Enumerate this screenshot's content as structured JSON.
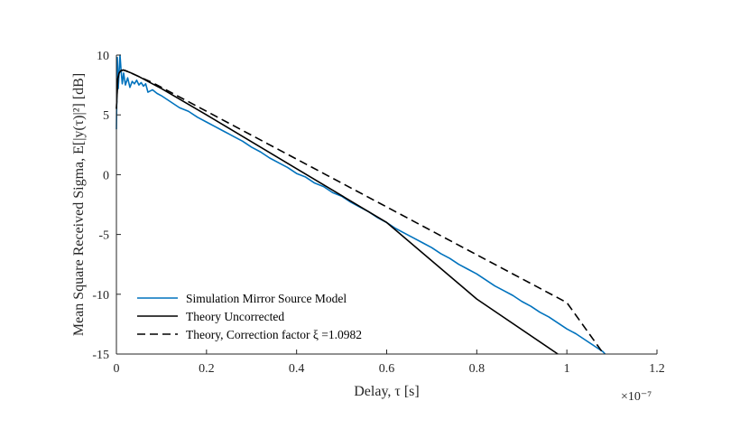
{
  "chart_data": {
    "type": "line",
    "title": "",
    "xlabel": "Delay, τ [s]",
    "ylabel": "Mean Square Received Sigma, E[|y(τ)|²] [dB]",
    "x_exponent_label": "×10⁻⁷",
    "x_scale_note": "x values are in units of 1e-7 s",
    "xlim": [
      0,
      1.2
    ],
    "ylim": [
      -15,
      10
    ],
    "x_ticks": [
      0,
      0.2,
      0.4,
      0.6,
      0.8,
      1,
      1.2
    ],
    "x_tick_labels": [
      "0",
      "0.2",
      "0.4",
      "0.6",
      "0.8",
      "1",
      "1.2"
    ],
    "y_ticks": [
      10,
      5,
      0,
      -5,
      -10,
      -15
    ],
    "y_tick_labels": [
      "10",
      "5",
      "0",
      "-5",
      "-10",
      "-15"
    ],
    "grid": false,
    "legend_position": "bottom-left",
    "series": [
      {
        "name": "Simulation Mirror Source Model",
        "color": "#0072BD",
        "style": "solid",
        "x": [
          0.0,
          0.002,
          0.004,
          0.006,
          0.008,
          0.01,
          0.013,
          0.016,
          0.02,
          0.025,
          0.03,
          0.035,
          0.04,
          0.045,
          0.05,
          0.055,
          0.06,
          0.065,
          0.07,
          0.08,
          0.09,
          0.1,
          0.12,
          0.14,
          0.16,
          0.18,
          0.2,
          0.22,
          0.24,
          0.26,
          0.28,
          0.3,
          0.32,
          0.34,
          0.36,
          0.38,
          0.4,
          0.42,
          0.44,
          0.46,
          0.48,
          0.5,
          0.52,
          0.54,
          0.56,
          0.58,
          0.6,
          0.62,
          0.64,
          0.66,
          0.68,
          0.7,
          0.72,
          0.74,
          0.76,
          0.78,
          0.8,
          0.82,
          0.84,
          0.86,
          0.88,
          0.9,
          0.92,
          0.94,
          0.96,
          0.98,
          1.0,
          1.02,
          1.04,
          1.06,
          1.08,
          1.085
        ],
        "y": [
          3.8,
          9.8,
          7.2,
          8.6,
          10.0,
          8.9,
          7.6,
          8.5,
          7.5,
          8.1,
          7.3,
          7.8,
          7.6,
          7.9,
          7.5,
          7.7,
          7.4,
          7.6,
          6.9,
          7.1,
          6.8,
          6.6,
          6.1,
          5.6,
          5.3,
          4.8,
          4.4,
          4.0,
          3.6,
          3.2,
          2.8,
          2.3,
          1.9,
          1.4,
          1.0,
          0.6,
          0.1,
          -0.2,
          -0.7,
          -1.0,
          -1.5,
          -1.8,
          -2.3,
          -2.7,
          -3.1,
          -3.6,
          -4.0,
          -4.5,
          -4.9,
          -5.3,
          -5.7,
          -6.1,
          -6.6,
          -7.0,
          -7.5,
          -7.9,
          -8.3,
          -8.8,
          -9.3,
          -9.7,
          -10.1,
          -10.6,
          -11.0,
          -11.5,
          -11.9,
          -12.4,
          -12.9,
          -13.3,
          -13.8,
          -14.3,
          -14.8,
          -15.0
        ]
      },
      {
        "name": "Theory Uncorrected",
        "color": "#000000",
        "style": "solid",
        "x": [
          0.0,
          0.003,
          0.006,
          0.01,
          0.015,
          0.02,
          0.03,
          0.05,
          0.08,
          0.1,
          0.2,
          0.4,
          0.6,
          0.8,
          0.98
        ],
        "y": [
          5.5,
          8.0,
          8.5,
          8.7,
          8.75,
          8.7,
          8.55,
          8.2,
          7.6,
          7.2,
          5.0,
          0.5,
          -4.0,
          -10.4,
          -15.0
        ]
      },
      {
        "name": "Theory, Correction factor ξ =1.0982",
        "color": "#000000",
        "style": "dashed",
        "x": [
          0.0,
          0.003,
          0.006,
          0.01,
          0.015,
          0.02,
          0.03,
          0.05,
          0.08,
          0.1,
          0.2,
          0.4,
          0.6,
          0.8,
          1.0,
          1.08
        ],
        "y": [
          5.5,
          8.0,
          8.5,
          8.7,
          8.75,
          8.7,
          8.55,
          8.2,
          7.7,
          7.3,
          5.3,
          1.3,
          -2.7,
          -6.7,
          -10.7,
          -14.9
        ]
      }
    ]
  }
}
